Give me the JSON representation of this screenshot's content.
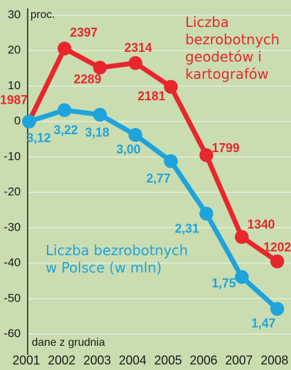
{
  "chart_data": {
    "type": "line",
    "y_label": "proc.",
    "note": "dane z grudnia",
    "categories": [
      "2001",
      "2002",
      "2003",
      "2004",
      "2005",
      "2006",
      "2007",
      "2008"
    ],
    "ylim": [
      -60,
      30
    ],
    "yticks": [
      30,
      20,
      10,
      0,
      -10,
      -20,
      -30,
      -40,
      -50,
      -60
    ],
    "grid": true,
    "series": [
      {
        "name": "Liczba bezrobotnych geodetów i kartografów",
        "color": "#e8262d",
        "values": [
          0,
          20.6,
          15.2,
          16.5,
          9.8,
          -9.5,
          -32.6,
          -39.5
        ],
        "point_labels": [
          "1987",
          "2397",
          "2289",
          "2314",
          "2181",
          "1799",
          "1340",
          "1202"
        ]
      },
      {
        "name": "Liczba bezrobotnych w Polsce (w mln)",
        "color": "#1fa3dc",
        "values": [
          0,
          3.2,
          1.9,
          -3.8,
          -11.2,
          -26.0,
          -43.9,
          -52.9
        ],
        "point_labels": [
          "3,12",
          "3,22",
          "3,18",
          "3,00",
          "2,77",
          "2,31",
          "1,75",
          "1,47"
        ]
      }
    ]
  }
}
